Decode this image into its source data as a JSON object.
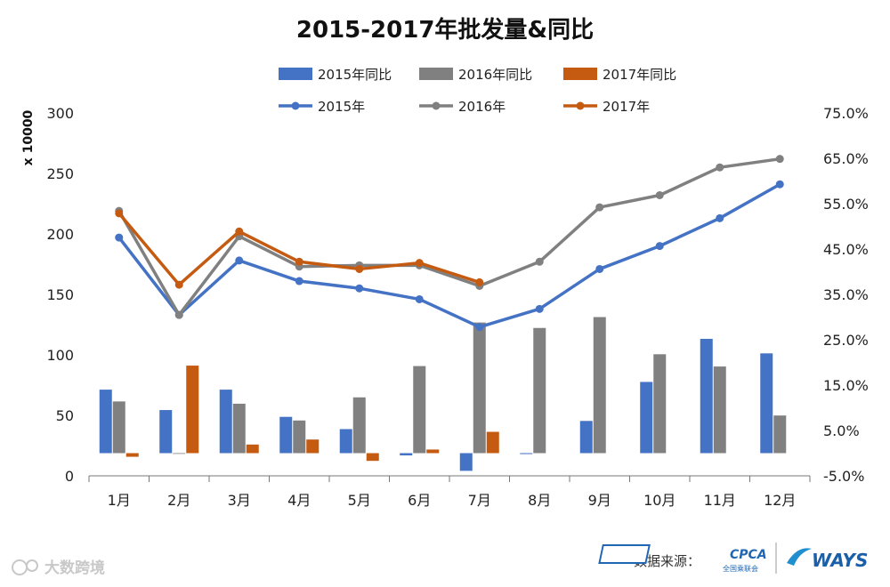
{
  "chart_data": {
    "type": "bar+line",
    "title": "2015-2017年批发量&同比",
    "categories": [
      "1月",
      "2月",
      "3月",
      "4月",
      "5月",
      "6月",
      "7月",
      "8月",
      "9月",
      "10月",
      "11月",
      "12月"
    ],
    "left_axis": {
      "label": "x 10000",
      "min": 0,
      "max": 300,
      "ticks": [
        "0",
        "50",
        "100",
        "150",
        "200",
        "250",
        "300"
      ]
    },
    "right_axis": {
      "min": -5,
      "max": 75,
      "ticks": [
        "-5.0%",
        "5.0%",
        "15.0%",
        "25.0%",
        "35.0%",
        "45.0%",
        "55.0%",
        "65.0%",
        "75.0%"
      ]
    },
    "bar_series": [
      {
        "name": "2015年同比",
        "color": "#4472C4",
        "values": [
          14.0,
          9.5,
          14.0,
          8.0,
          5.3,
          -0.5,
          -3.9,
          -0.2,
          7.1,
          15.7,
          25.2,
          22.0
        ]
      },
      {
        "name": "2016年同比",
        "color": "#808080",
        "values": [
          11.4,
          -0.1,
          10.9,
          7.2,
          12.3,
          19.2,
          28.8,
          27.6,
          30.0,
          21.8,
          19.1,
          8.3
        ]
      },
      {
        "name": "2017年同比",
        "color": "#C55A11",
        "values": [
          -0.8,
          19.3,
          1.9,
          3.0,
          -1.7,
          0.8,
          4.7,
          null,
          null,
          null,
          null,
          null
        ]
      }
    ],
    "line_series": [
      {
        "name": "2015年",
        "color": "#4472C4",
        "values": [
          197,
          133,
          178,
          161,
          155,
          146,
          123,
          138,
          171,
          190,
          213,
          241
        ]
      },
      {
        "name": "2016年",
        "color": "#808080",
        "values": [
          219,
          133,
          198,
          173,
          174,
          174,
          157,
          177,
          222,
          232,
          255,
          262
        ]
      },
      {
        "name": "2017年",
        "color": "#C55A11",
        "values": [
          217,
          158,
          202,
          177,
          171,
          176,
          160,
          null,
          null,
          null,
          null,
          null
        ]
      }
    ],
    "legend_position": "top",
    "grid": false
  },
  "source_label": "数据来源：",
  "logos": {
    "cpca": "CPCA",
    "cpca_sub": "全国乘联会",
    "ways": "WAYS"
  },
  "watermark": "大数跨境"
}
